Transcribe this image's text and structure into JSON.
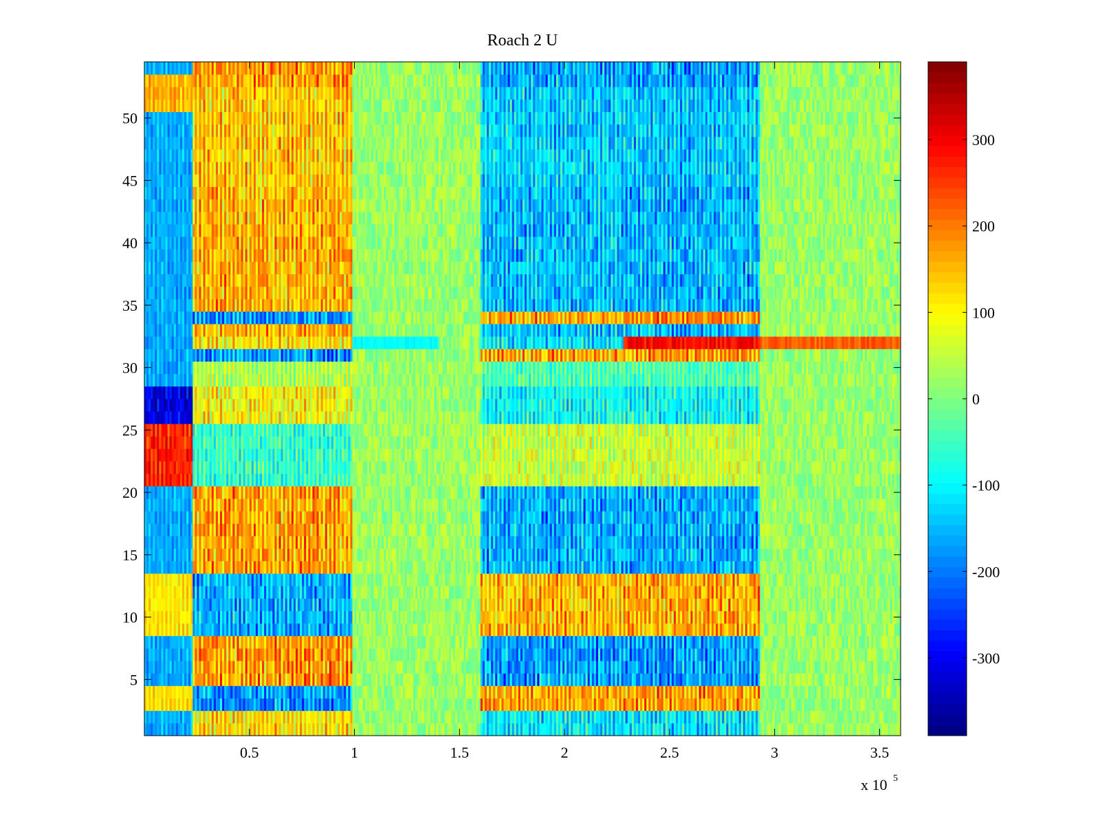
{
  "chart_data": {
    "type": "heatmap",
    "title": "Roach 2 U",
    "xlabel": "",
    "ylabel": "",
    "x_multiplier_label": "x 10",
    "x_multiplier_exponent": "5",
    "xlim": [
      0,
      360000
    ],
    "ylim": [
      0.5,
      54.5
    ],
    "n_rows": 54,
    "x_ticks": [
      {
        "value": 50000,
        "label": "0.5"
      },
      {
        "value": 100000,
        "label": "1"
      },
      {
        "value": 150000,
        "label": "1.5"
      },
      {
        "value": 200000,
        "label": "2"
      },
      {
        "value": 250000,
        "label": "2.5"
      },
      {
        "value": 300000,
        "label": "3"
      },
      {
        "value": 350000,
        "label": "3.5"
      }
    ],
    "y_ticks": [
      {
        "value": 5,
        "label": "5"
      },
      {
        "value": 10,
        "label": "10"
      },
      {
        "value": 15,
        "label": "15"
      },
      {
        "value": 20,
        "label": "20"
      },
      {
        "value": 25,
        "label": "25"
      },
      {
        "value": 30,
        "label": "30"
      },
      {
        "value": 35,
        "label": "35"
      },
      {
        "value": 40,
        "label": "40"
      },
      {
        "value": 45,
        "label": "45"
      },
      {
        "value": 50,
        "label": "50"
      }
    ],
    "colorbar": {
      "colormap": "jet",
      "clim": [
        -390,
        390
      ],
      "ticks": [
        {
          "value": 300,
          "label": "300"
        },
        {
          "value": 200,
          "label": "200"
        },
        {
          "value": 100,
          "label": "100"
        },
        {
          "value": 0,
          "label": "0"
        },
        {
          "value": -100,
          "label": "-100"
        },
        {
          "value": -200,
          "label": "-200"
        },
        {
          "value": -300,
          "label": "-300"
        }
      ]
    },
    "segments": [
      {
        "x_start": 0,
        "x_end": 23000,
        "intensity": 1.0,
        "alternation": 0.55,
        "note_rows": "lower rows 21-26 positive, upper rows 26-54 mostly negative"
      },
      {
        "x_start": 23000,
        "x_end": 99000,
        "intensity": 1.0,
        "alternation": 0.5
      },
      {
        "x_start": 99000,
        "x_end": 160000,
        "intensity": 0.15,
        "alternation": 0.8
      },
      {
        "x_start": 160000,
        "x_end": 228000,
        "intensity": 0.95,
        "alternation": 0.5
      },
      {
        "x_start": 228000,
        "x_end": 293000,
        "intensity": 1.0,
        "alternation": 0.5
      },
      {
        "x_start": 293000,
        "x_end": 360000,
        "intensity": 0.15,
        "alternation": 0.8
      }
    ],
    "row_values_quiet": {
      "row": 32,
      "x_range": [
        228000,
        360000
      ],
      "value": 220
    }
  }
}
